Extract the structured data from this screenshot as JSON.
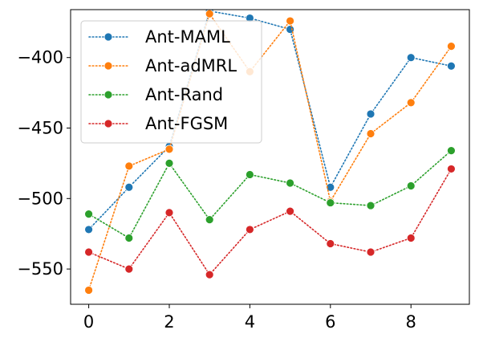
{
  "chart_data": {
    "type": "line",
    "title": "",
    "xlabel": "",
    "ylabel": "",
    "x": [
      0,
      1,
      2,
      3,
      4,
      5,
      6,
      7,
      8,
      9
    ],
    "xlim": [
      -0.45,
      9.45
    ],
    "ylim": [
      -575,
      -366
    ],
    "xticks": [
      0,
      2,
      4,
      6,
      8
    ],
    "yticks": [
      -400,
      -450,
      -500,
      -550
    ],
    "xtick_labels": [
      "0",
      "2",
      "4",
      "6",
      "8"
    ],
    "ytick_labels": [
      "−400",
      "−450",
      "−500",
      "−550"
    ],
    "grid": false,
    "legend_position": "top-left",
    "line_style": "dotted",
    "markers": "circle",
    "series": [
      {
        "name": "Ant-MAML",
        "color": "#1f77b4",
        "values": [
          -522,
          -492,
          -463,
          -367,
          -372,
          -380,
          -492,
          -440,
          -400,
          -406
        ]
      },
      {
        "name": "Ant-adMRL",
        "color": "#ff7f0e",
        "values": [
          -565,
          -477,
          -465,
          -369,
          -410,
          -374,
          -502,
          -454,
          -432,
          -392
        ]
      },
      {
        "name": "Ant-Rand",
        "color": "#2ca02c",
        "values": [
          -511,
          -528,
          -475,
          -515,
          -483,
          -489,
          -503,
          -505,
          -491,
          -466
        ]
      },
      {
        "name": "Ant-FGSM",
        "color": "#d62728",
        "values": [
          -538,
          -550,
          -510,
          -554,
          -522,
          -509,
          -532,
          -538,
          -528,
          -479
        ]
      }
    ]
  }
}
